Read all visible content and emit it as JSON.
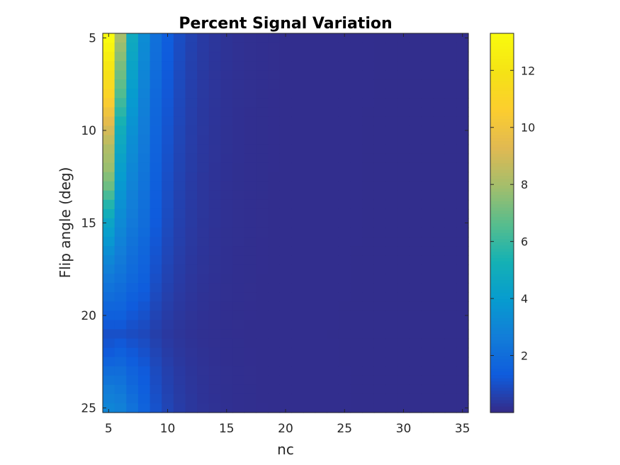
{
  "chart_data": {
    "type": "heatmap",
    "title": "Percent Signal Variation",
    "xlabel": "nc",
    "ylabel": "Flip angle (deg)",
    "x_range": [
      5,
      35
    ],
    "y_range": [
      5,
      25
    ],
    "y_reversed": true,
    "x_ticks": [
      "5",
      "10",
      "15",
      "20",
      "25",
      "30",
      "35"
    ],
    "y_ticks": [
      "5",
      "10",
      "15",
      "20",
      "25"
    ],
    "colormap": "parula",
    "clim": [
      0,
      13.3
    ],
    "colorbar_ticks": [
      "2",
      "4",
      "6",
      "8",
      "10",
      "12"
    ],
    "colorbar_tick_values": [
      2,
      4,
      6,
      8,
      10,
      12
    ],
    "flip_angle_step_deg": 0.5,
    "values_note_cols": "nc = 5 .. 35 (31 columns)",
    "columns_sample": {
      "nc_5": {
        "fa_5": 13.3,
        "fa_8": 11.0,
        "fa_10": 9.0,
        "fa_13": 7.0,
        "fa_15": 4.5,
        "fa_18": 2.5,
        "fa_21": 1.0,
        "fa_25": 3.0
      },
      "nc_6": {
        "fa_5": 8.0,
        "fa_8": 6.5,
        "fa_10": 5.0,
        "fa_15": 3.2,
        "fa_21": 1.0,
        "fa_25": 2.8
      },
      "nc_7": {
        "fa_5": 4.8,
        "fa_10": 3.5,
        "fa_15": 2.5,
        "fa_21": 0.9,
        "fa_25": 2.2
      },
      "nc_8": {
        "fa_5": 3.3,
        "fa_15": 2.0,
        "fa_25": 1.6
      },
      "nc_10": {
        "fa_5": 2.0,
        "fa_15": 1.3,
        "fa_25": 0.9
      },
      "nc_12": {
        "fa_5": 1.0,
        "fa_15": 0.6,
        "fa_25": 0.4
      },
      "nc_15_to_35": 0.1
    }
  }
}
